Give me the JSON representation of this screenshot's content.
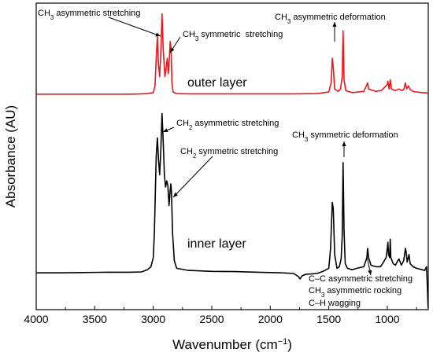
{
  "chart_data": {
    "type": "line",
    "title": "",
    "xlabel": "Wavenumber (cm−1)",
    "xlabel_parts": {
      "main": "Wavenumber (cm",
      "sup": "−1",
      "close": ")"
    },
    "ylabel": "Absorbance (AU)",
    "xlim": [
      4000,
      650
    ],
    "x_reversed": true,
    "ylim": [
      0,
      1
    ],
    "y_ticks_shown": false,
    "x_ticks": [
      4000,
      3500,
      3000,
      2500,
      2000,
      1500,
      1000
    ],
    "grid": false,
    "series": [
      {
        "name": "outer layer",
        "color": "#e8191c",
        "points": [
          [
            4000,
            0.703
          ],
          [
            3800,
            0.703
          ],
          [
            3600,
            0.703
          ],
          [
            3400,
            0.703
          ],
          [
            3200,
            0.703
          ],
          [
            3100,
            0.704
          ],
          [
            3050,
            0.705
          ],
          [
            3000,
            0.708
          ],
          [
            2985,
            0.73
          ],
          [
            2975,
            0.82
          ],
          [
            2965,
            0.89
          ],
          [
            2955,
            0.8
          ],
          [
            2945,
            0.76
          ],
          [
            2935,
            0.84
          ],
          [
            2925,
            0.965
          ],
          [
            2915,
            0.85
          ],
          [
            2900,
            0.76
          ],
          [
            2890,
            0.79
          ],
          [
            2880,
            0.82
          ],
          [
            2872,
            0.77
          ],
          [
            2865,
            0.8
          ],
          [
            2855,
            0.875
          ],
          [
            2848,
            0.85
          ],
          [
            2840,
            0.74
          ],
          [
            2830,
            0.71
          ],
          [
            2800,
            0.705
          ],
          [
            2700,
            0.704
          ],
          [
            2500,
            0.704
          ],
          [
            2200,
            0.704
          ],
          [
            1800,
            0.704
          ],
          [
            1600,
            0.705
          ],
          [
            1500,
            0.71
          ],
          [
            1480,
            0.74
          ],
          [
            1470,
            0.82
          ],
          [
            1462,
            0.79
          ],
          [
            1450,
            0.72
          ],
          [
            1420,
            0.712
          ],
          [
            1400,
            0.72
          ],
          [
            1385,
            0.76
          ],
          [
            1378,
            0.91
          ],
          [
            1370,
            0.75
          ],
          [
            1355,
            0.715
          ],
          [
            1300,
            0.708
          ],
          [
            1250,
            0.71
          ],
          [
            1200,
            0.712
          ],
          [
            1168,
            0.74
          ],
          [
            1160,
            0.72
          ],
          [
            1100,
            0.712
          ],
          [
            1050,
            0.715
          ],
          [
            1000,
            0.735
          ],
          [
            995,
            0.745
          ],
          [
            985,
            0.72
          ],
          [
            975,
            0.75
          ],
          [
            965,
            0.72
          ],
          [
            930,
            0.715
          ],
          [
            900,
            0.72
          ],
          [
            880,
            0.715
          ],
          [
            860,
            0.718
          ],
          [
            845,
            0.74
          ],
          [
            835,
            0.72
          ],
          [
            820,
            0.73
          ],
          [
            805,
            0.718
          ],
          [
            780,
            0.712
          ],
          [
            750,
            0.71
          ],
          [
            700,
            0.708
          ],
          [
            650,
            0.707
          ]
        ]
      },
      {
        "name": "inner layer",
        "color": "#000000",
        "points": [
          [
            4000,
            0.12
          ],
          [
            3800,
            0.12
          ],
          [
            3600,
            0.121
          ],
          [
            3400,
            0.122
          ],
          [
            3200,
            0.122
          ],
          [
            3100,
            0.123
          ],
          [
            3050,
            0.13
          ],
          [
            3020,
            0.14
          ],
          [
            3000,
            0.17
          ],
          [
            2990,
            0.25
          ],
          [
            2975,
            0.5
          ],
          [
            2965,
            0.56
          ],
          [
            2955,
            0.49
          ],
          [
            2945,
            0.44
          ],
          [
            2935,
            0.52
          ],
          [
            2925,
            0.64
          ],
          [
            2915,
            0.55
          ],
          [
            2905,
            0.44
          ],
          [
            2895,
            0.4
          ],
          [
            2885,
            0.42
          ],
          [
            2875,
            0.405
          ],
          [
            2865,
            0.34
          ],
          [
            2855,
            0.39
          ],
          [
            2850,
            0.41
          ],
          [
            2845,
            0.39
          ],
          [
            2835,
            0.25
          ],
          [
            2820,
            0.16
          ],
          [
            2800,
            0.135
          ],
          [
            2700,
            0.128
          ],
          [
            2500,
            0.125
          ],
          [
            2300,
            0.124
          ],
          [
            2100,
            0.122
          ],
          [
            1900,
            0.12
          ],
          [
            1800,
            0.118
          ],
          [
            1760,
            0.108
          ],
          [
            1745,
            0.1
          ],
          [
            1730,
            0.11
          ],
          [
            1700,
            0.115
          ],
          [
            1600,
            0.118
          ],
          [
            1550,
            0.125
          ],
          [
            1500,
            0.135
          ],
          [
            1485,
            0.2
          ],
          [
            1470,
            0.35
          ],
          [
            1462,
            0.33
          ],
          [
            1450,
            0.18
          ],
          [
            1430,
            0.135
          ],
          [
            1410,
            0.14
          ],
          [
            1395,
            0.165
          ],
          [
            1385,
            0.24
          ],
          [
            1378,
            0.48
          ],
          [
            1370,
            0.26
          ],
          [
            1360,
            0.15
          ],
          [
            1340,
            0.135
          ],
          [
            1300,
            0.13
          ],
          [
            1260,
            0.135
          ],
          [
            1200,
            0.14
          ],
          [
            1175,
            0.17
          ],
          [
            1168,
            0.2
          ],
          [
            1160,
            0.17
          ],
          [
            1140,
            0.145
          ],
          [
            1100,
            0.14
          ],
          [
            1060,
            0.14
          ],
          [
            1040,
            0.15
          ],
          [
            1010,
            0.17
          ],
          [
            1000,
            0.2
          ],
          [
            995,
            0.22
          ],
          [
            990,
            0.18
          ],
          [
            980,
            0.17
          ],
          [
            975,
            0.23
          ],
          [
            970,
            0.17
          ],
          [
            950,
            0.15
          ],
          [
            930,
            0.145
          ],
          [
            910,
            0.16
          ],
          [
            900,
            0.165
          ],
          [
            880,
            0.145
          ],
          [
            860,
            0.16
          ],
          [
            845,
            0.2
          ],
          [
            840,
            0.19
          ],
          [
            830,
            0.155
          ],
          [
            815,
            0.18
          ],
          [
            805,
            0.15
          ],
          [
            780,
            0.14
          ],
          [
            750,
            0.135
          ],
          [
            700,
            0.13
          ],
          [
            680,
            0.128
          ],
          [
            665,
            0.14
          ],
          [
            658,
            0.08
          ],
          [
            652,
            0.01
          ],
          [
            650,
            0.005
          ]
        ]
      }
    ],
    "annotations": [
      {
        "base": "CH",
        "sub": "3",
        "rest": " asymmetric stretching",
        "series": "outer layer",
        "target_x": 2925
      },
      {
        "base": "CH",
        "sub": "3",
        "rest": " symmetric  stretching",
        "series": "outer layer",
        "target_x": 2875
      },
      {
        "base": "CH",
        "sub": "3",
        "rest": " asymmetric deformation",
        "series": "outer layer",
        "target_x": 1462
      },
      {
        "base": "CH",
        "sub": "2",
        "rest": " asymmetric stretching",
        "series": "inner layer",
        "target_x": 2925
      },
      {
        "base": "CH",
        "sub": "2",
        "rest": " symmetric stretching",
        "series": "inner layer",
        "target_x": 2880
      },
      {
        "base": "CH",
        "sub": "3",
        "rest": " symmetric deformation",
        "series": "inner layer",
        "target_x": 1378
      },
      {
        "base": "C–C asymmetric stretching",
        "sub": "",
        "rest": "",
        "series": "inner layer",
        "target_x": 1168
      },
      {
        "base": "CH",
        "sub": "3",
        "rest": " asymmetric rocking",
        "series": "inner layer",
        "target_x": 0
      },
      {
        "base": "C–H wagging",
        "sub": "",
        "rest": "",
        "series": "inner layer",
        "target_x": 0
      }
    ],
    "series_labels": [
      "outer layer",
      "inner layer"
    ]
  }
}
